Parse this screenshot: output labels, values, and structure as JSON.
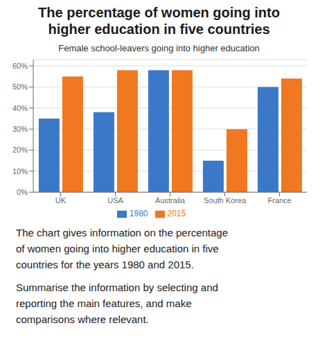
{
  "chart_data": {
    "type": "bar",
    "title": [
      "The percentage of women going into",
      "higher education in five countries"
    ],
    "subtitle": "Female school-leavers going into higher education",
    "categories": [
      "UK",
      "USA",
      "Australia",
      "South Korea",
      "France"
    ],
    "series": [
      {
        "name": "1980",
        "color": "#3c78c8",
        "values": [
          35,
          38,
          58,
          15,
          50
        ]
      },
      {
        "name": "2015",
        "color": "#f07820",
        "values": [
          55,
          58,
          58,
          30,
          54
        ]
      }
    ],
    "ylim": [
      0,
      63
    ],
    "yticks": [
      {
        "value": 0,
        "label": "0%"
      },
      {
        "value": 10,
        "label": "10%"
      },
      {
        "value": 20,
        "label": "20%"
      },
      {
        "value": 30,
        "label": "30%"
      },
      {
        "value": 40,
        "label": "40%"
      },
      {
        "value": 50,
        "label": "50%"
      },
      {
        "value": 60,
        "label": "60%"
      }
    ],
    "grid": true,
    "legend": "bottom",
    "annotations": [
      [
        "The chart gives information on the percentage",
        "of women going into higher education in five",
        "countries for the years 1980 and 2015."
      ],
      [
        "Summarise the information by selecting and",
        "reporting the main features, and make",
        "comparisons where relevant."
      ]
    ]
  }
}
